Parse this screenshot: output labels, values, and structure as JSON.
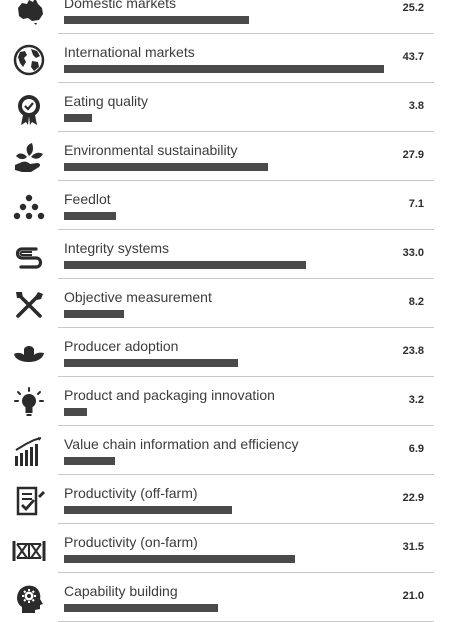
{
  "chart_data": {
    "type": "bar",
    "orientation": "horizontal",
    "categories": [
      "Domestic markets",
      "International markets",
      "Eating quality",
      "Environmental sustainability",
      "Feedlot",
      "Integrity systems",
      "Objective measurement",
      "Producer adoption",
      "Product and packaging innovation",
      "Value chain information and efficiency",
      "Productivity (off-farm)",
      "Productivity (on-farm)",
      "Capability building"
    ],
    "values": [
      25.2,
      43.7,
      3.8,
      27.9,
      7.1,
      33.0,
      8.2,
      23.8,
      3.2,
      6.9,
      22.9,
      31.5,
      21.0
    ],
    "value_labels": [
      "25.2",
      "43.7",
      "3.8",
      "27.9",
      "7.1",
      "33.0",
      "8.2",
      "23.8",
      "3.2",
      "6.9",
      "22.9",
      "31.5",
      "21.0"
    ],
    "icons": [
      "australia-map-icon",
      "globe-icon",
      "quality-award-icon",
      "hand-with-leaves-icon",
      "feedlot-dots-icon",
      "integrity-loop-icon",
      "crossed-tools-icon",
      "producer-hat-icon",
      "lightbulb-icon",
      "bar-growth-icon",
      "clipboard-check-icon",
      "farm-gate-icon",
      "head-gear-icon"
    ],
    "xlim": [
      0,
      43.7
    ],
    "grid": false,
    "colors": {
      "bar": "#4a4a4a",
      "icon": "#2b2b2b",
      "divider": "#c9c9c9",
      "text": "#3c3c3c"
    }
  }
}
